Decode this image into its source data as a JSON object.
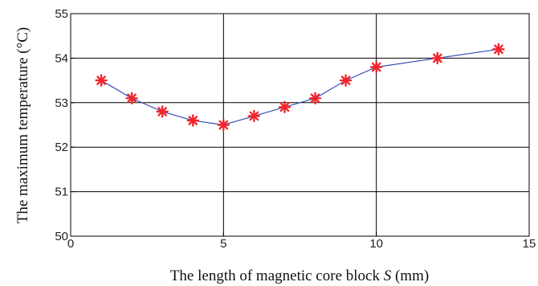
{
  "chart_data": {
    "type": "line",
    "title": "",
    "xlabel": {
      "prefix": "The length of magnetic core block ",
      "variable": "S",
      "suffix": "  (mm)"
    },
    "ylabel": "The maximum temperature  (°C)",
    "xlim": [
      0,
      15
    ],
    "ylim": [
      50,
      55
    ],
    "xticks": [
      "0",
      "5",
      "10",
      "15"
    ],
    "yticks": [
      "50",
      "51",
      "52",
      "53",
      "54",
      "55"
    ],
    "grid": true,
    "marker": "asterisk",
    "line_color": "#3b55b5",
    "marker_color": "#f0262c",
    "series": [
      {
        "x": [
          1,
          2,
          3,
          4,
          5,
          6,
          7,
          8,
          9,
          10,
          12,
          14
        ],
        "y": [
          53.5,
          53.1,
          52.8,
          52.6,
          52.5,
          52.7,
          52.9,
          53.1,
          53.5,
          53.8,
          54.0,
          54.2
        ]
      }
    ]
  }
}
